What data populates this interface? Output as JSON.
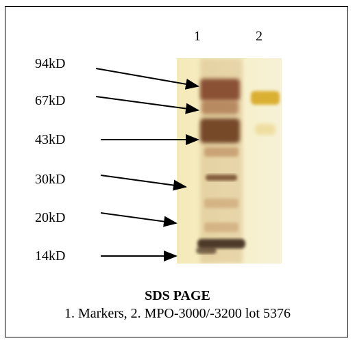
{
  "lanes": [
    "1",
    "2"
  ],
  "markers": [
    {
      "label": "94kD"
    },
    {
      "label": "67kD"
    },
    {
      "label": "43kD"
    },
    {
      "label": "30kD"
    },
    {
      "label": "20kD"
    },
    {
      "label": "14kD"
    }
  ],
  "title": "SDS PAGE",
  "caption": "1. Markers, 2. MPO-3000/-3200 lot 5376",
  "colors": {
    "gel_background": "#f7f0c6",
    "band_dark": "#6b3a1f",
    "band_gold": "#d8a920",
    "arrow": "#000000"
  }
}
